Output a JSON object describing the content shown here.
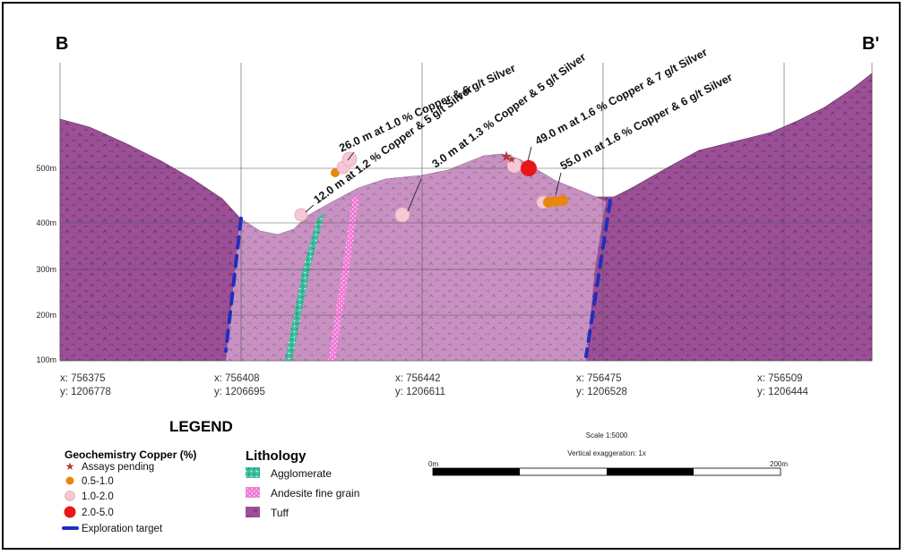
{
  "section": {
    "left_label": "B",
    "right_label": "B'"
  },
  "elevation_labels": [
    "500m",
    "400m",
    "300m",
    "200m",
    "100m"
  ],
  "coordinates": [
    {
      "x": "x: 756375",
      "y": "y: 1206778"
    },
    {
      "x": "x: 756408",
      "y": "y: 1206695"
    },
    {
      "x": "x: 756442",
      "y": "y: 1206611"
    },
    {
      "x": "x: 756475",
      "y": "y: 1206528"
    },
    {
      "x": "x: 756509",
      "y": "y: 1206444"
    }
  ],
  "intercepts": [
    "26.0 m at 1.0 % Copper & 6 g/t Silver",
    "12.0 m at 1.2 % Copper & 5 g/t Silver",
    "3.0 m at 1.3 % Copper & 5 g/t Silver",
    "49.0 m at 1.6 % Copper & 7 g/t Silver",
    "55.0 m at 1.6 % Copper & 6 g/t Silver"
  ],
  "legend": {
    "title": "LEGEND",
    "geochem_title": "Geochemistry Copper (%)",
    "geochem_items": [
      {
        "label": "Assays pending",
        "color": "#b03a3a",
        "symbol": "star"
      },
      {
        "label": "0.5-1.0",
        "color": "#e8870e",
        "symbol": "circle"
      },
      {
        "label": "1.0-2.0",
        "color": "#f7c7d3",
        "symbol": "circle"
      },
      {
        "label": "2.0-5.0",
        "color": "#e8161c",
        "symbol": "circle"
      }
    ],
    "target_label": "Exploration target",
    "target_color": "#1f2fbf",
    "lithology_title": "Lithology",
    "lithology_items": [
      {
        "label": "Agglomerate",
        "color": "#3fbf9f"
      },
      {
        "label": "Andesite fine grain",
        "color": "#f07ad6"
      },
      {
        "label": "Tuff",
        "color": "#9b4f96"
      }
    ]
  },
  "scale": {
    "title": "Scale 1:5000",
    "exaggeration": "Vertical exaggeration: 1x",
    "start": "0m",
    "end": "200m"
  },
  "colors": {
    "tuff_outer": "#9b4f96",
    "tuff_inner": "#c791c2",
    "agglomerate": "#3fbf9f",
    "andesite": "#f07ad6"
  }
}
